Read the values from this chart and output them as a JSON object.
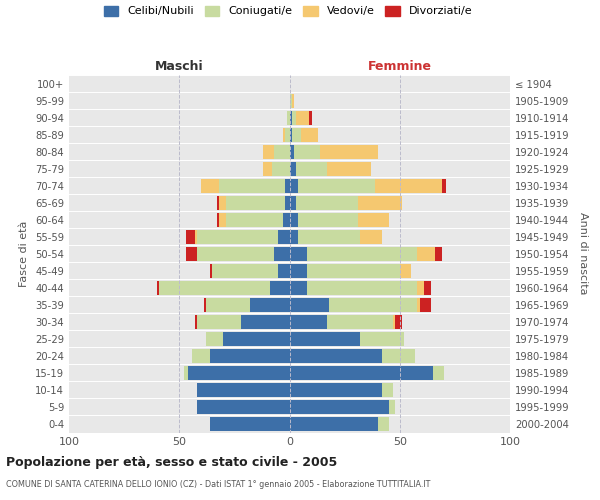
{
  "age_groups": [
    "0-4",
    "5-9",
    "10-14",
    "15-19",
    "20-24",
    "25-29",
    "30-34",
    "35-39",
    "40-44",
    "45-49",
    "50-54",
    "55-59",
    "60-64",
    "65-69",
    "70-74",
    "75-79",
    "80-84",
    "85-89",
    "90-94",
    "95-99",
    "100+"
  ],
  "birth_years": [
    "2000-2004",
    "1995-1999",
    "1990-1994",
    "1985-1989",
    "1980-1984",
    "1975-1979",
    "1970-1974",
    "1965-1969",
    "1960-1964",
    "1955-1959",
    "1950-1954",
    "1945-1949",
    "1940-1944",
    "1935-1939",
    "1930-1934",
    "1925-1929",
    "1920-1924",
    "1915-1919",
    "1910-1914",
    "1905-1909",
    "≤ 1904"
  ],
  "male": {
    "celibi": [
      36,
      42,
      42,
      46,
      36,
      30,
      22,
      18,
      9,
      5,
      7,
      5,
      3,
      2,
      2,
      0,
      0,
      0,
      0,
      0,
      0
    ],
    "coniugati": [
      0,
      0,
      0,
      2,
      8,
      8,
      20,
      20,
      50,
      30,
      35,
      37,
      26,
      27,
      30,
      8,
      7,
      2,
      1,
      0,
      0
    ],
    "vedovi": [
      0,
      0,
      0,
      0,
      0,
      0,
      0,
      0,
      0,
      0,
      0,
      1,
      3,
      3,
      8,
      4,
      5,
      1,
      0,
      0,
      0
    ],
    "divorziati": [
      0,
      0,
      0,
      0,
      0,
      0,
      1,
      1,
      1,
      1,
      5,
      4,
      1,
      1,
      0,
      0,
      0,
      0,
      0,
      0,
      0
    ]
  },
  "female": {
    "nubili": [
      40,
      45,
      42,
      65,
      42,
      32,
      17,
      18,
      8,
      8,
      8,
      4,
      4,
      3,
      4,
      3,
      2,
      1,
      1,
      0,
      0
    ],
    "coniugate": [
      5,
      3,
      5,
      5,
      15,
      20,
      30,
      40,
      50,
      42,
      50,
      28,
      27,
      28,
      35,
      14,
      12,
      4,
      2,
      1,
      0
    ],
    "vedove": [
      0,
      0,
      0,
      0,
      0,
      0,
      1,
      1,
      3,
      5,
      8,
      10,
      14,
      20,
      30,
      20,
      26,
      8,
      6,
      1,
      0
    ],
    "divorziate": [
      0,
      0,
      0,
      0,
      0,
      0,
      3,
      5,
      3,
      0,
      3,
      0,
      0,
      0,
      2,
      0,
      0,
      0,
      1,
      0,
      0
    ]
  },
  "colors": {
    "celibi_nubili": "#3d6fa8",
    "coniugati": "#c8dba0",
    "vedovi": "#f5c870",
    "divorziati": "#cc2222"
  },
  "xlim": 100,
  "title": "Popolazione per età, sesso e stato civile - 2005",
  "subtitle": "COMUNE DI SANTA CATERINA DELLO IONIO (CZ) - Dati ISTAT 1° gennaio 2005 - Elaborazione TUTTITALIA.IT",
  "ylabel_left": "Fasce di età",
  "ylabel_right": "Anni di nascita",
  "xlabel_left": "Maschi",
  "xlabel_right": "Femmine",
  "background_color": "#ffffff",
  "plot_bg_color": "#e8e8e8"
}
